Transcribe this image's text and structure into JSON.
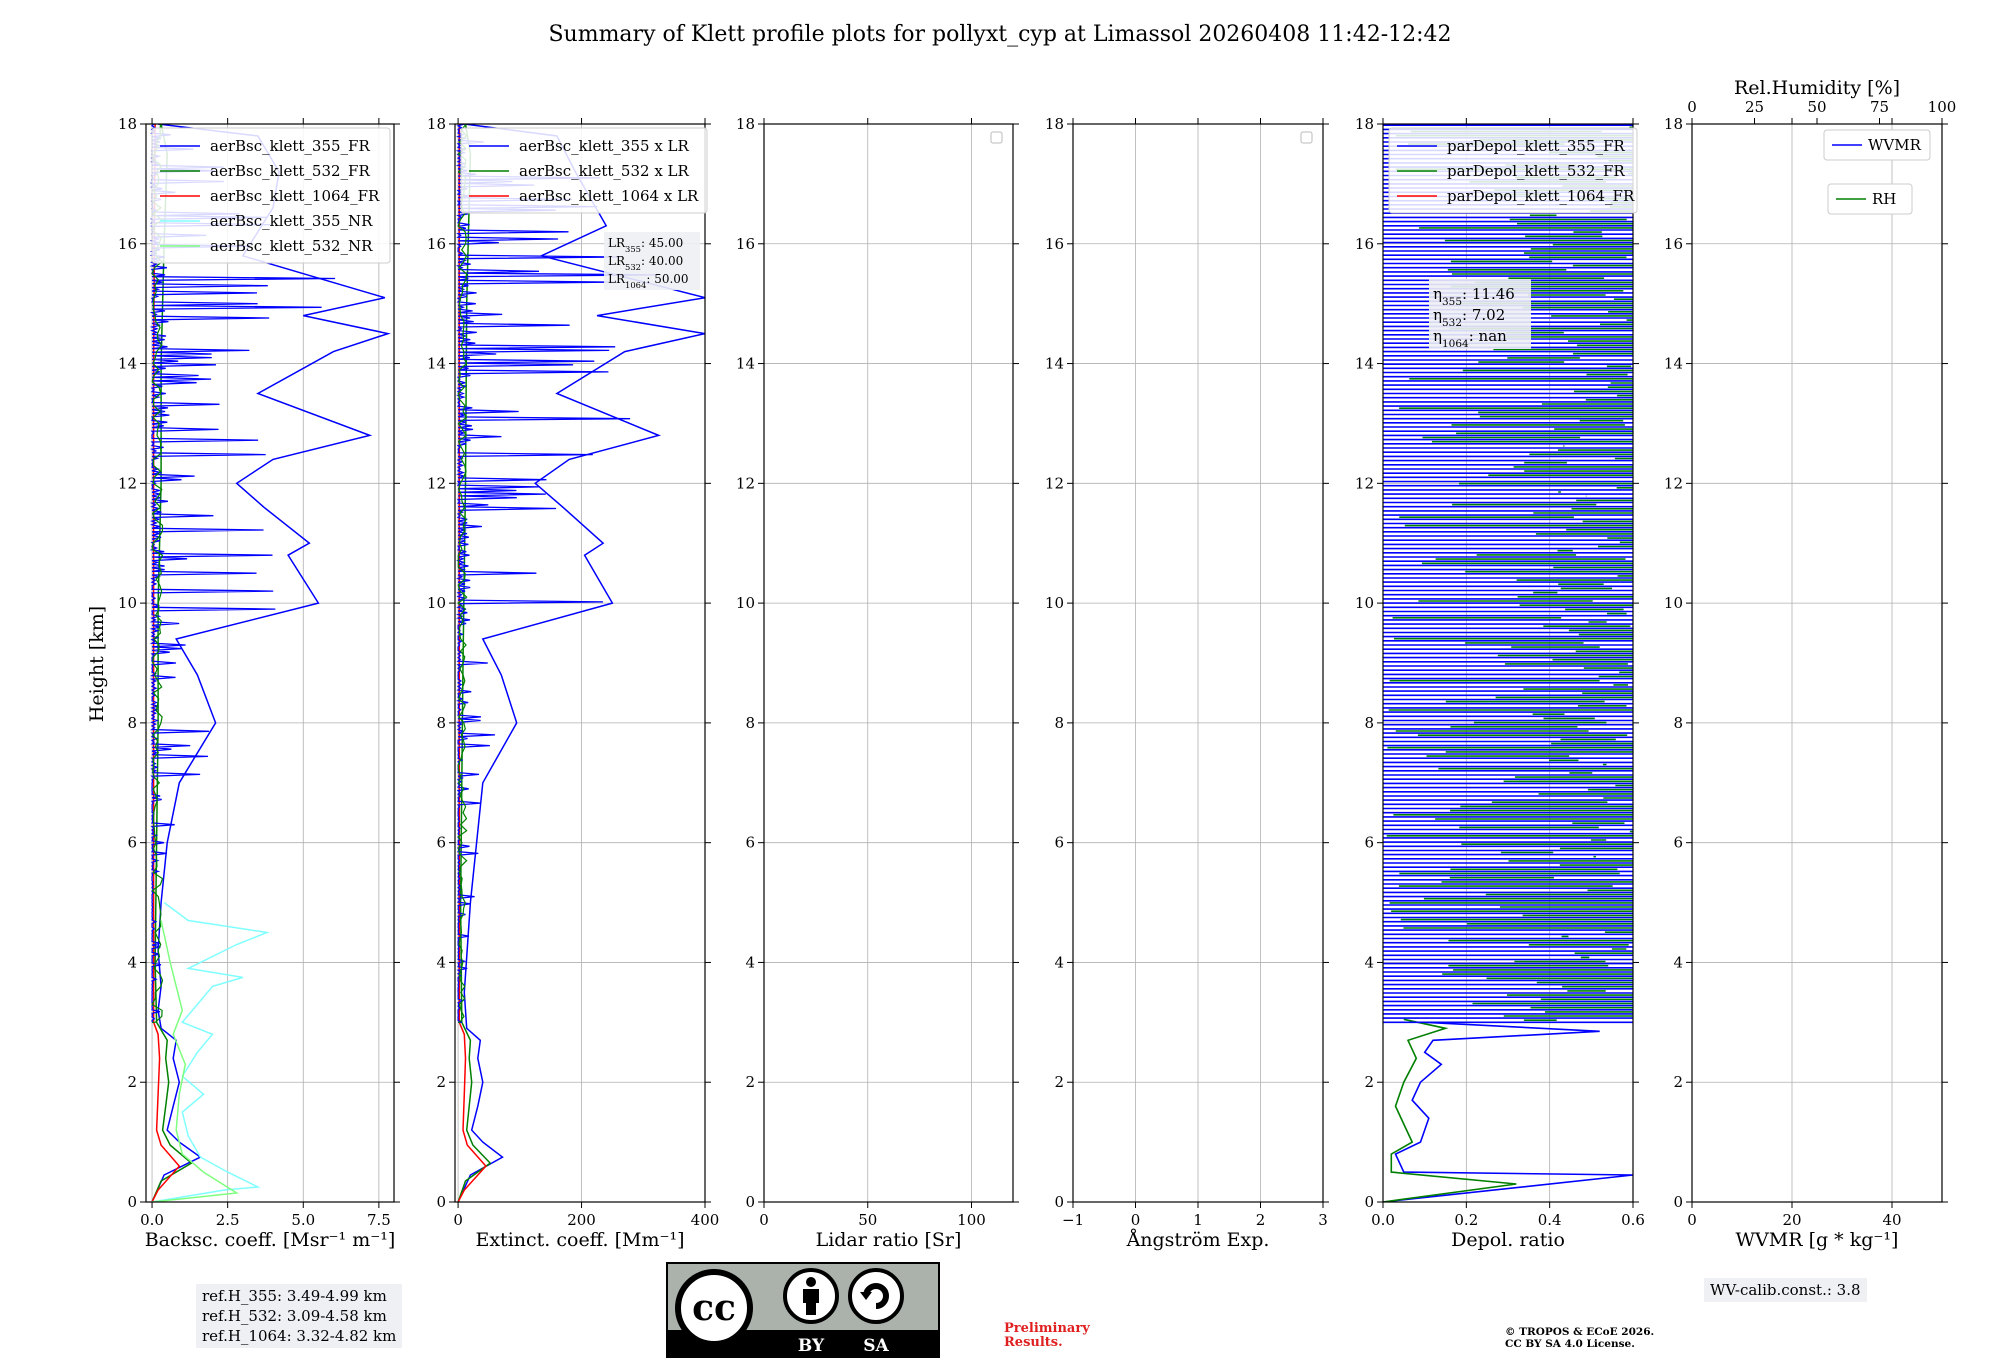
{
  "title": "Summary of Klett profile plots for pollyxt_cyp at Limassol 20260408 11:42-12:42",
  "ylabel": "Height [km]",
  "colors": {
    "b355": "#0000ff",
    "g532": "#008000",
    "r1064": "#ff0000",
    "c355nr": "#80ffff",
    "l532nr": "#7fff7f",
    "grid": "#b0b0b0"
  },
  "chart_data": [
    {
      "type": "line",
      "xlabel": "Backsc. coeff. [Msr⁻¹ m⁻¹]",
      "xlim": [
        -0.2,
        8.0
      ],
      "ylim": [
        0,
        18
      ],
      "xticks": [
        0.0,
        2.5,
        5.0,
        7.5
      ],
      "xticklabels": [
        "0.0",
        "2.5",
        "5.0",
        "7.5"
      ],
      "yticks": [
        0,
        2,
        4,
        6,
        8,
        10,
        12,
        14,
        16,
        18
      ],
      "legend": [
        "aerBsc_klett_355_FR",
        "aerBsc_klett_532_FR",
        "aerBsc_klett_1064_FR",
        "aerBsc_klett_355_NR",
        "aerBsc_klett_532_NR"
      ],
      "series": [
        {
          "name": "aerBsc_klett_355_FR",
          "color": "#0000ff",
          "points": [
            [
              0.0,
              0.0
            ],
            [
              0.4,
              0.45
            ],
            [
              1.6,
              0.75
            ],
            [
              0.9,
              1.0
            ],
            [
              0.5,
              1.2
            ],
            [
              0.7,
              1.6
            ],
            [
              0.9,
              2.0
            ],
            [
              0.7,
              2.4
            ],
            [
              0.8,
              2.7
            ],
            [
              0.3,
              2.9
            ],
            [
              0.2,
              3.2
            ],
            [
              0.3,
              3.6
            ],
            [
              0.2,
              4.2
            ],
            [
              0.3,
              5.0
            ],
            [
              0.5,
              6.0
            ],
            [
              0.9,
              7.0
            ],
            [
              2.1,
              8.0
            ],
            [
              1.5,
              8.8
            ],
            [
              0.8,
              9.4
            ],
            [
              5.5,
              10.0
            ],
            [
              4.5,
              10.8
            ],
            [
              5.2,
              11.0
            ],
            [
              3.7,
              11.6
            ],
            [
              2.8,
              12.0
            ],
            [
              4.0,
              12.4
            ],
            [
              7.2,
              12.8
            ],
            [
              3.5,
              13.5
            ],
            [
              6.0,
              14.2
            ],
            [
              7.8,
              14.5
            ],
            [
              5.0,
              14.8
            ],
            [
              7.7,
              15.1
            ],
            [
              3.0,
              15.8
            ],
            [
              4.0,
              16.6
            ],
            [
              4.2,
              17.2
            ],
            [
              3.5,
              17.8
            ],
            [
              0.2,
              18.0
            ]
          ]
        },
        {
          "name": "aerBsc_klett_532_FR",
          "color": "#008000",
          "points": [
            [
              0.0,
              0.0
            ],
            [
              0.3,
              0.35
            ],
            [
              1.3,
              0.65
            ],
            [
              0.6,
              0.95
            ],
            [
              0.35,
              1.2
            ],
            [
              0.45,
              1.6
            ],
            [
              0.55,
              2.0
            ],
            [
              0.45,
              2.4
            ],
            [
              0.5,
              2.7
            ],
            [
              0.15,
              3.0
            ],
            [
              0.1,
              4.0
            ],
            [
              0.15,
              6.0
            ],
            [
              0.2,
              8.0
            ],
            [
              0.2,
              10.0
            ],
            [
              0.3,
              12.0
            ],
            [
              0.3,
              14.0
            ],
            [
              0.4,
              16.0
            ],
            [
              0.5,
              17.5
            ],
            [
              0.3,
              18.0
            ]
          ]
        },
        {
          "name": "aerBsc_klett_1064_FR",
          "color": "#ff0000",
          "points": [
            [
              0.0,
              0.0
            ],
            [
              0.2,
              0.2
            ],
            [
              0.9,
              0.6
            ],
            [
              0.3,
              0.95
            ],
            [
              0.15,
              1.2
            ],
            [
              0.2,
              1.8
            ],
            [
              0.25,
              2.4
            ],
            [
              0.2,
              2.8
            ],
            [
              0.05,
              3.0
            ],
            [
              0.05,
              6.0
            ],
            [
              0.05,
              10.0
            ],
            [
              0.05,
              14.0
            ],
            [
              0.1,
              18.0
            ]
          ]
        },
        {
          "name": "aerBsc_klett_355_NR",
          "color": "#80ffff",
          "points": [
            [
              0.0,
              0.0
            ],
            [
              2.4,
              0.2
            ],
            [
              3.5,
              0.25
            ],
            [
              2.5,
              0.5
            ],
            [
              1.6,
              0.75
            ],
            [
              1.2,
              1.1
            ],
            [
              1.0,
              1.5
            ],
            [
              1.7,
              1.8
            ],
            [
              1.0,
              2.1
            ],
            [
              1.5,
              2.5
            ],
            [
              2.0,
              2.8
            ],
            [
              1.0,
              3.0
            ],
            [
              2.0,
              3.6
            ],
            [
              3.0,
              3.75
            ],
            [
              1.2,
              3.9
            ],
            [
              2.8,
              4.3
            ],
            [
              3.8,
              4.5
            ],
            [
              1.2,
              4.7
            ],
            [
              0.4,
              5.0
            ]
          ]
        },
        {
          "name": "aerBsc_klett_532_NR",
          "color": "#7fff7f",
          "points": [
            [
              0.0,
              0.0
            ],
            [
              2.8,
              0.15
            ],
            [
              1.7,
              0.5
            ],
            [
              1.0,
              0.8
            ],
            [
              0.8,
              1.2
            ],
            [
              0.9,
              1.8
            ],
            [
              1.1,
              2.3
            ],
            [
              0.7,
              2.8
            ],
            [
              1.0,
              3.2
            ],
            [
              0.6,
              4.0
            ],
            [
              0.3,
              4.7
            ]
          ]
        }
      ]
    },
    {
      "type": "line",
      "xlabel": "Extinct. coeff. [Mm⁻¹]",
      "xlim": [
        -5,
        400
      ],
      "ylim": [
        0,
        18
      ],
      "xticks": [
        0,
        200,
        400
      ],
      "xticklabels": [
        "0",
        "200",
        "400"
      ],
      "yticks": [
        0,
        2,
        4,
        6,
        8,
        10,
        12,
        14,
        16,
        18
      ],
      "legend": [
        "aerBsc_klett_355 x LR",
        "aerBsc_klett_532 x LR",
        "aerBsc_klett_1064 x LR"
      ],
      "annotation": [
        "LR355: 45.00",
        "LR532: 40.00",
        "LR1064: 50.00"
      ],
      "series": [
        {
          "name": "aerBsc_klett_355 x LR",
          "color": "#0000ff",
          "points": [
            [
              0,
              0
            ],
            [
              20,
              0.45
            ],
            [
              72,
              0.75
            ],
            [
              40,
              1.0
            ],
            [
              22,
              1.2
            ],
            [
              32,
              1.6
            ],
            [
              40,
              2.0
            ],
            [
              32,
              2.4
            ],
            [
              36,
              2.7
            ],
            [
              14,
              2.9
            ],
            [
              10,
              3.5
            ],
            [
              20,
              5.0
            ],
            [
              40,
              7.0
            ],
            [
              95,
              8.0
            ],
            [
              70,
              8.8
            ],
            [
              40,
              9.4
            ],
            [
              250,
              10.0
            ],
            [
              205,
              10.8
            ],
            [
              235,
              11.0
            ],
            [
              170,
              11.6
            ],
            [
              125,
              12.0
            ],
            [
              180,
              12.4
            ],
            [
              325,
              12.8
            ],
            [
              160,
              13.5
            ],
            [
              270,
              14.2
            ],
            [
              400,
              14.5
            ],
            [
              225,
              14.8
            ],
            [
              400,
              15.1
            ],
            [
              135,
              15.8
            ],
            [
              240,
              16.3
            ],
            [
              190,
              17.2
            ],
            [
              160,
              17.8
            ],
            [
              10,
              18.0
            ]
          ]
        },
        {
          "name": "aerBsc_klett_532 x LR",
          "color": "#008000",
          "points": [
            [
              0,
              0
            ],
            [
              12,
              0.35
            ],
            [
              52,
              0.65
            ],
            [
              24,
              0.95
            ],
            [
              14,
              1.2
            ],
            [
              18,
              1.6
            ],
            [
              22,
              2.0
            ],
            [
              18,
              2.4
            ],
            [
              20,
              2.7
            ],
            [
              6,
              3.0
            ],
            [
              4,
              5.0
            ],
            [
              8,
              9.0
            ],
            [
              12,
              12.0
            ],
            [
              14,
              15.0
            ],
            [
              20,
              17.5
            ],
            [
              12,
              18.0
            ]
          ]
        },
        {
          "name": "aerBsc_klett_1064 x LR",
          "color": "#ff0000",
          "points": [
            [
              0,
              0
            ],
            [
              10,
              0.2
            ],
            [
              45,
              0.6
            ],
            [
              15,
              0.95
            ],
            [
              8,
              1.2
            ],
            [
              10,
              1.8
            ],
            [
              12,
              2.4
            ],
            [
              10,
              2.8
            ],
            [
              2,
              3.0
            ],
            [
              2,
              18.0
            ]
          ]
        }
      ]
    },
    {
      "type": "line",
      "xlabel": "Lidar ratio [Sr]",
      "xlim": [
        0,
        120
      ],
      "ylim": [
        0,
        18
      ],
      "xticks": [
        0,
        50,
        100
      ],
      "xticklabels": [
        "0",
        "50",
        "100"
      ],
      "yticks": [
        0,
        2,
        4,
        6,
        8,
        10,
        12,
        14,
        16,
        18
      ],
      "series": []
    },
    {
      "type": "line",
      "xlabel": "Ångström Exp.",
      "xlim": [
        -1,
        3
      ],
      "ylim": [
        0,
        18
      ],
      "xticks": [
        -1,
        0,
        1,
        2,
        3
      ],
      "xticklabels": [
        "−1",
        "0",
        "1",
        "2",
        "3"
      ],
      "yticks": [
        0,
        2,
        4,
        6,
        8,
        10,
        12,
        14,
        16,
        18
      ],
      "series": []
    },
    {
      "type": "line",
      "xlabel": "Depol. ratio",
      "xlim": [
        0.0,
        0.6
      ],
      "ylim": [
        0,
        18
      ],
      "xticks": [
        0.0,
        0.2,
        0.4,
        0.6
      ],
      "xticklabels": [
        "0.0",
        "0.2",
        "0.4",
        "0.6"
      ],
      "yticks": [
        0,
        2,
        4,
        6,
        8,
        10,
        12,
        14,
        16,
        18
      ],
      "legend": [
        "parDepol_klett_355_FR",
        "parDepol_klett_532_FR",
        "parDepol_klett_1064_FR"
      ],
      "annotation": [
        "η355: 11.46",
        "η532: 7.02",
        "η1064: nan"
      ],
      "series": [
        {
          "name": "parDepol_klett_355_FR",
          "color": "#0000ff",
          "points": [
            [
              0.0,
              0.0
            ],
            [
              0.6,
              0.45
            ],
            [
              0.05,
              0.5
            ],
            [
              0.03,
              0.8
            ],
            [
              0.09,
              1.0
            ],
            [
              0.11,
              1.4
            ],
            [
              0.07,
              1.7
            ],
            [
              0.09,
              2.0
            ],
            [
              0.14,
              2.3
            ],
            [
              0.1,
              2.5
            ],
            [
              0.12,
              2.7
            ],
            [
              0.52,
              2.85
            ],
            [
              0.1,
              3.0
            ]
          ]
        },
        {
          "name": "parDepol_klett_532_FR",
          "color": "#008000",
          "points": [
            [
              0.0,
              0.0
            ],
            [
              0.32,
              0.3
            ],
            [
              0.02,
              0.5
            ],
            [
              0.02,
              0.8
            ],
            [
              0.07,
              1.0
            ],
            [
              0.05,
              1.3
            ],
            [
              0.03,
              1.6
            ],
            [
              0.05,
              2.0
            ],
            [
              0.08,
              2.4
            ],
            [
              0.06,
              2.7
            ],
            [
              0.15,
              2.9
            ],
            [
              0.05,
              3.05
            ]
          ]
        }
      ]
    },
    {
      "type": "line",
      "xlabel": "WVMR [g * kg⁻¹]",
      "xlim": [
        0,
        50
      ],
      "ylim": [
        0,
        18
      ],
      "xticks": [
        0,
        20,
        40
      ],
      "xticklabels": [
        "0",
        "20",
        "40"
      ],
      "top_axis": {
        "label": "Rel.Humidity [%]",
        "ticks": [
          0,
          25,
          50,
          75,
          100
        ],
        "ticklabels": [
          "0",
          "25",
          "50",
          "75",
          "100"
        ]
      },
      "yticks": [
        0,
        2,
        4,
        6,
        8,
        10,
        12,
        14,
        16,
        18
      ],
      "legend": [
        "WVMR",
        "RH"
      ],
      "series": []
    }
  ],
  "ref_heights": [
    "ref.H_355: 3.49-4.99 km",
    "ref.H_532: 3.09-4.58 km",
    "ref.H_1064: 3.32-4.82 km"
  ],
  "wv_calib": "WV-calib.const.: 3.8",
  "license_badge": {
    "cc": "cc",
    "by": "BY",
    "sa": "SA"
  },
  "preliminary": [
    "Preliminary",
    "Results."
  ],
  "copyright": [
    "© TROPOS & ECoE 2026.",
    "CC BY SA 4.0 License."
  ]
}
